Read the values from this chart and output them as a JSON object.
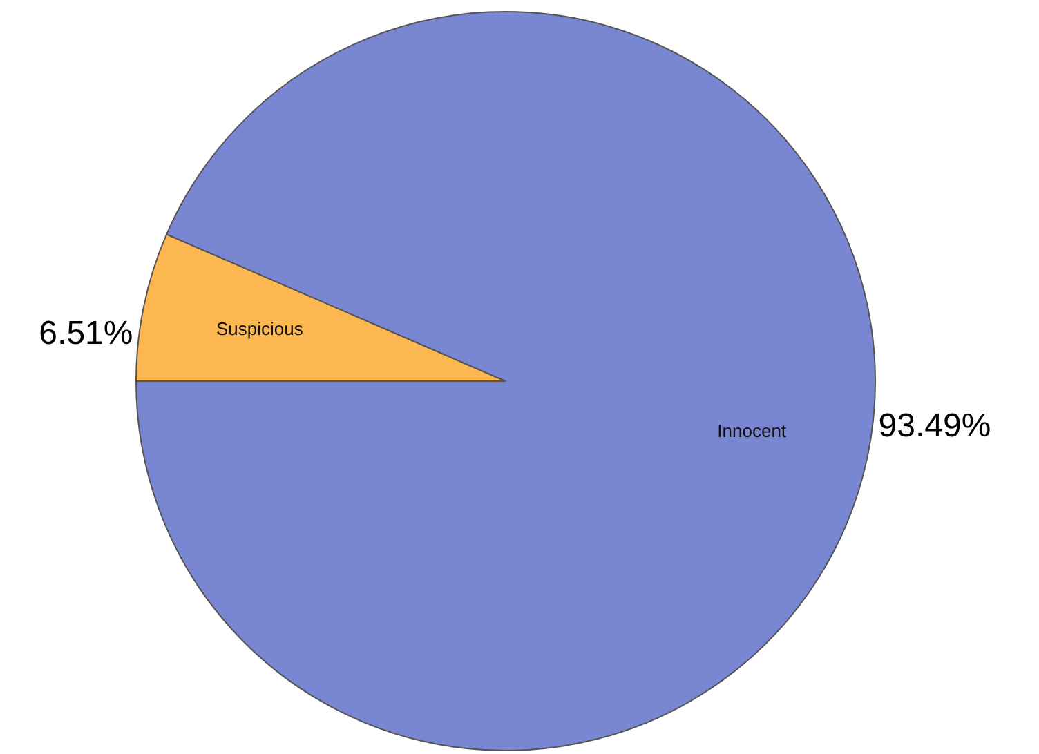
{
  "chart_data": {
    "type": "pie",
    "categories": [
      "Suspicious",
      "Innocent"
    ],
    "values": [
      6.51,
      93.49
    ],
    "colors": [
      "#fdb751",
      "#7986d1"
    ],
    "value_labels": [
      "6.51%",
      "93.49%"
    ],
    "legend": false
  }
}
